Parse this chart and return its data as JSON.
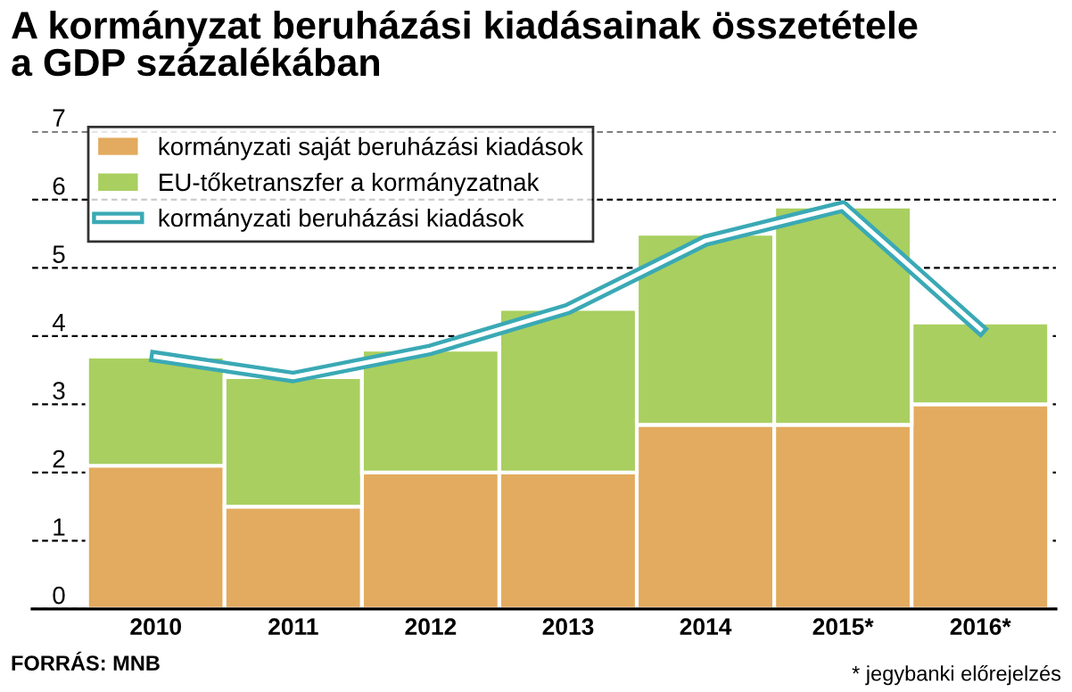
{
  "chart_data": {
    "type": "bar",
    "title": "A kormányzat beruházási kiadásainak összetétele\na GDP százalékában",
    "categories": [
      "2010",
      "2011",
      "2012",
      "2013",
      "2014",
      "2015*",
      "2016*"
    ],
    "stacked": true,
    "series": [
      {
        "name": "kormányzati saját beruházási kiadások",
        "color": "#e3ab5f",
        "values": [
          2.1,
          1.5,
          2.0,
          2.0,
          2.7,
          2.7,
          3.0
        ]
      },
      {
        "name": "EU-tőketranszfer a kormányzatnak",
        "color": "#a9cf60",
        "values": [
          1.6,
          1.9,
          1.8,
          2.4,
          2.8,
          3.2,
          1.2
        ]
      },
      {
        "name": "kormányzati beruházási kiadások",
        "type": "line",
        "color": "#3aa9b5",
        "values": [
          3.7,
          3.4,
          3.8,
          4.4,
          5.4,
          5.9,
          4.1
        ]
      }
    ],
    "ylim": [
      0,
      7
    ],
    "yticks": [
      0,
      1,
      2,
      3,
      4,
      5,
      6,
      7
    ],
    "grid": "y",
    "legend": "top left",
    "marker": "none",
    "line_style": "solid",
    "annotations": [
      "FORRÁS: MNB",
      "* jegybanki előrejelzés"
    ]
  }
}
